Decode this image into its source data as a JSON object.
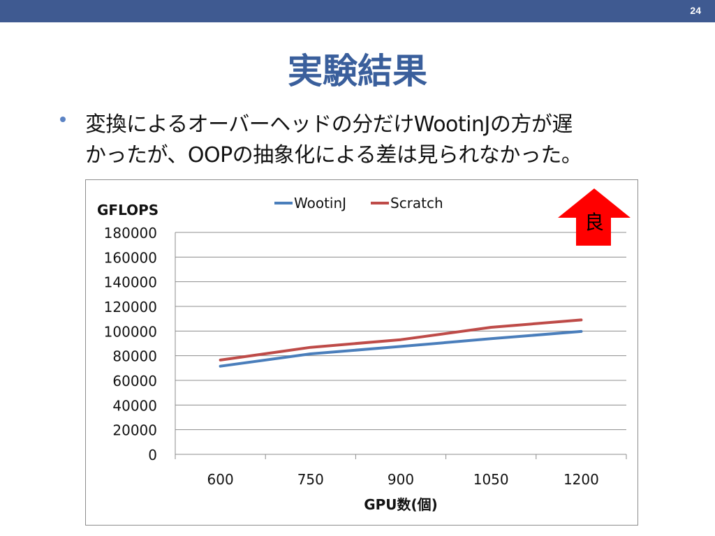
{
  "slide": {
    "number": "24",
    "title": "実験結果",
    "bullet_lines": [
      "変換によるオーバーヘッドの分だけWootinJの方が遅",
      "かったが、OOPの抽象化による差は見られなかった。"
    ],
    "badge_label": "良"
  },
  "colors": {
    "top_bar": "#3f5a91",
    "title": "#3a5f9c",
    "bullet": "#5b83c4",
    "badge_arrow": "#ff0000",
    "series_wootinj": "#4a7ebb",
    "series_scratch": "#be4b48"
  },
  "chart_data": {
    "type": "line",
    "ylabel": "GFLOPS",
    "xlabel": "GPU数(個)",
    "categories": [
      "600",
      "750",
      "900",
      "1050",
      "1200"
    ],
    "yticks": [
      "0",
      "20000",
      "40000",
      "60000",
      "80000",
      "100000",
      "120000",
      "140000",
      "160000",
      "180000"
    ],
    "ylim": [
      0,
      180000
    ],
    "grid": true,
    "legend": "top-center",
    "series": [
      {
        "name": "WootinJ",
        "values": [
          71500,
          81500,
          87500,
          93800,
          99700
        ]
      },
      {
        "name": "Scratch",
        "values": [
          76500,
          86800,
          93000,
          103000,
          109000
        ]
      }
    ]
  }
}
